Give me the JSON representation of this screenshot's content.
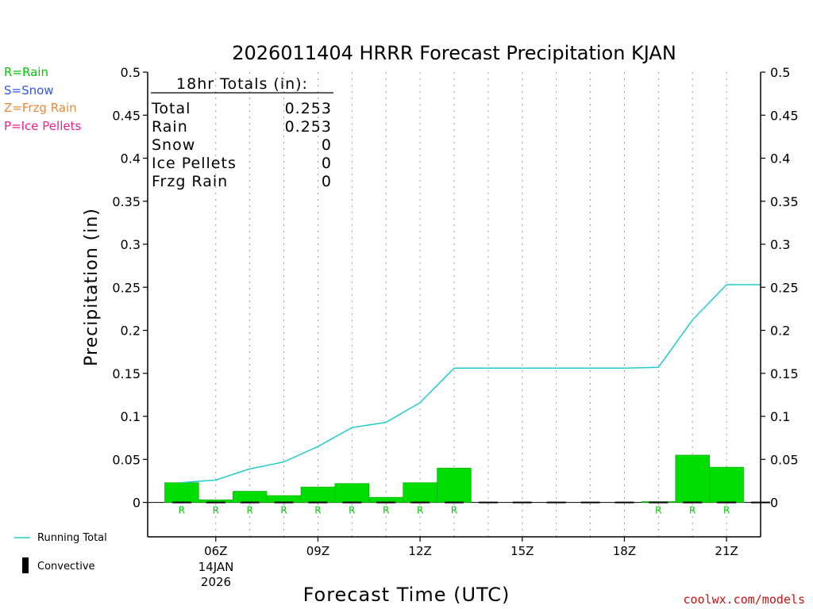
{
  "legend_left": [
    {
      "text": "R=Rain",
      "color": "#00cc00"
    },
    {
      "text": "S=Snow",
      "color": "#3355ee"
    },
    {
      "text": "Z=Frzg Rain",
      "color": "#ee8833"
    },
    {
      "text": "P=Ice Pellets",
      "color": "#ee2288"
    }
  ],
  "legend_bottom": {
    "running_total": "Running Total",
    "convective": "Convective"
  },
  "totals_box": {
    "header": "18hr Totals (in):",
    "rows": [
      {
        "label": "Total",
        "value": "0.253"
      },
      {
        "label": "Rain",
        "value": "0.253"
      },
      {
        "label": "Snow",
        "value": "0"
      },
      {
        "label": "Ice Pellets",
        "value": "0"
      },
      {
        "label": "Frzg Rain",
        "value": "0"
      }
    ]
  },
  "date_label": {
    "line1": "14JAN",
    "line2": "2026"
  },
  "watermark": "coolwx.com/models",
  "colors": {
    "rain": "#00dd00",
    "running_total": "#22cccc",
    "convective": "#000000"
  },
  "chart_data": {
    "type": "bar",
    "title": "2026011404 HRRR Forecast Precipitation KJAN",
    "xlabel": "Forecast Time (UTC)",
    "ylabel": "Precipitation (in)",
    "ylim": [
      -0.04,
      0.5
    ],
    "xlim": [
      4.0,
      22.0
    ],
    "yticks": [
      0,
      0.05,
      0.1,
      0.15,
      0.2,
      0.25,
      0.3,
      0.35,
      0.4,
      0.45,
      0.5
    ],
    "ytick_labels": [
      "0",
      "0.05",
      "0.1",
      "0.15",
      "0.2",
      "0.25",
      "0.3",
      "0.35",
      "0.4",
      "0.45",
      "0.5"
    ],
    "xticks": [
      {
        "hour": 6,
        "label": "06Z"
      },
      {
        "hour": 9,
        "label": "09Z"
      },
      {
        "hour": 12,
        "label": "12Z"
      },
      {
        "hour": 15,
        "label": "15Z"
      },
      {
        "hour": 18,
        "label": "18Z"
      },
      {
        "hour": 21,
        "label": "21Z"
      }
    ],
    "hourly_precip": [
      {
        "hour": 5,
        "value": 0.023,
        "type": "R"
      },
      {
        "hour": 6,
        "value": 0.003,
        "type": "R"
      },
      {
        "hour": 7,
        "value": 0.013,
        "type": "R"
      },
      {
        "hour": 8,
        "value": 0.008,
        "type": "R"
      },
      {
        "hour": 9,
        "value": 0.018,
        "type": "R"
      },
      {
        "hour": 10,
        "value": 0.022,
        "type": "R"
      },
      {
        "hour": 11,
        "value": 0.006,
        "type": "R"
      },
      {
        "hour": 12,
        "value": 0.023,
        "type": "R"
      },
      {
        "hour": 13,
        "value": 0.04,
        "type": "R"
      },
      {
        "hour": 14,
        "value": 0,
        "type": ""
      },
      {
        "hour": 15,
        "value": 0,
        "type": ""
      },
      {
        "hour": 16,
        "value": 0,
        "type": ""
      },
      {
        "hour": 17,
        "value": 0,
        "type": ""
      },
      {
        "hour": 18,
        "value": 0,
        "type": ""
      },
      {
        "hour": 19,
        "value": 0.001,
        "type": "R"
      },
      {
        "hour": 20,
        "value": 0.055,
        "type": "R"
      },
      {
        "hour": 21,
        "value": 0.041,
        "type": "R"
      },
      {
        "hour": 22,
        "value": 0,
        "type": ""
      }
    ],
    "running_total": {
      "name": "Running Total",
      "points": [
        [
          5,
          0.023
        ],
        [
          6,
          0.026
        ],
        [
          7,
          0.039
        ],
        [
          8,
          0.047
        ],
        [
          9,
          0.065
        ],
        [
          10,
          0.087
        ],
        [
          11,
          0.093
        ],
        [
          12,
          0.116
        ],
        [
          13,
          0.156
        ],
        [
          14,
          0.156
        ],
        [
          15,
          0.156
        ],
        [
          16,
          0.156
        ],
        [
          17,
          0.156
        ],
        [
          18,
          0.156
        ],
        [
          19,
          0.157
        ],
        [
          20,
          0.212
        ],
        [
          21,
          0.253
        ],
        [
          22,
          0.253
        ]
      ]
    }
  }
}
